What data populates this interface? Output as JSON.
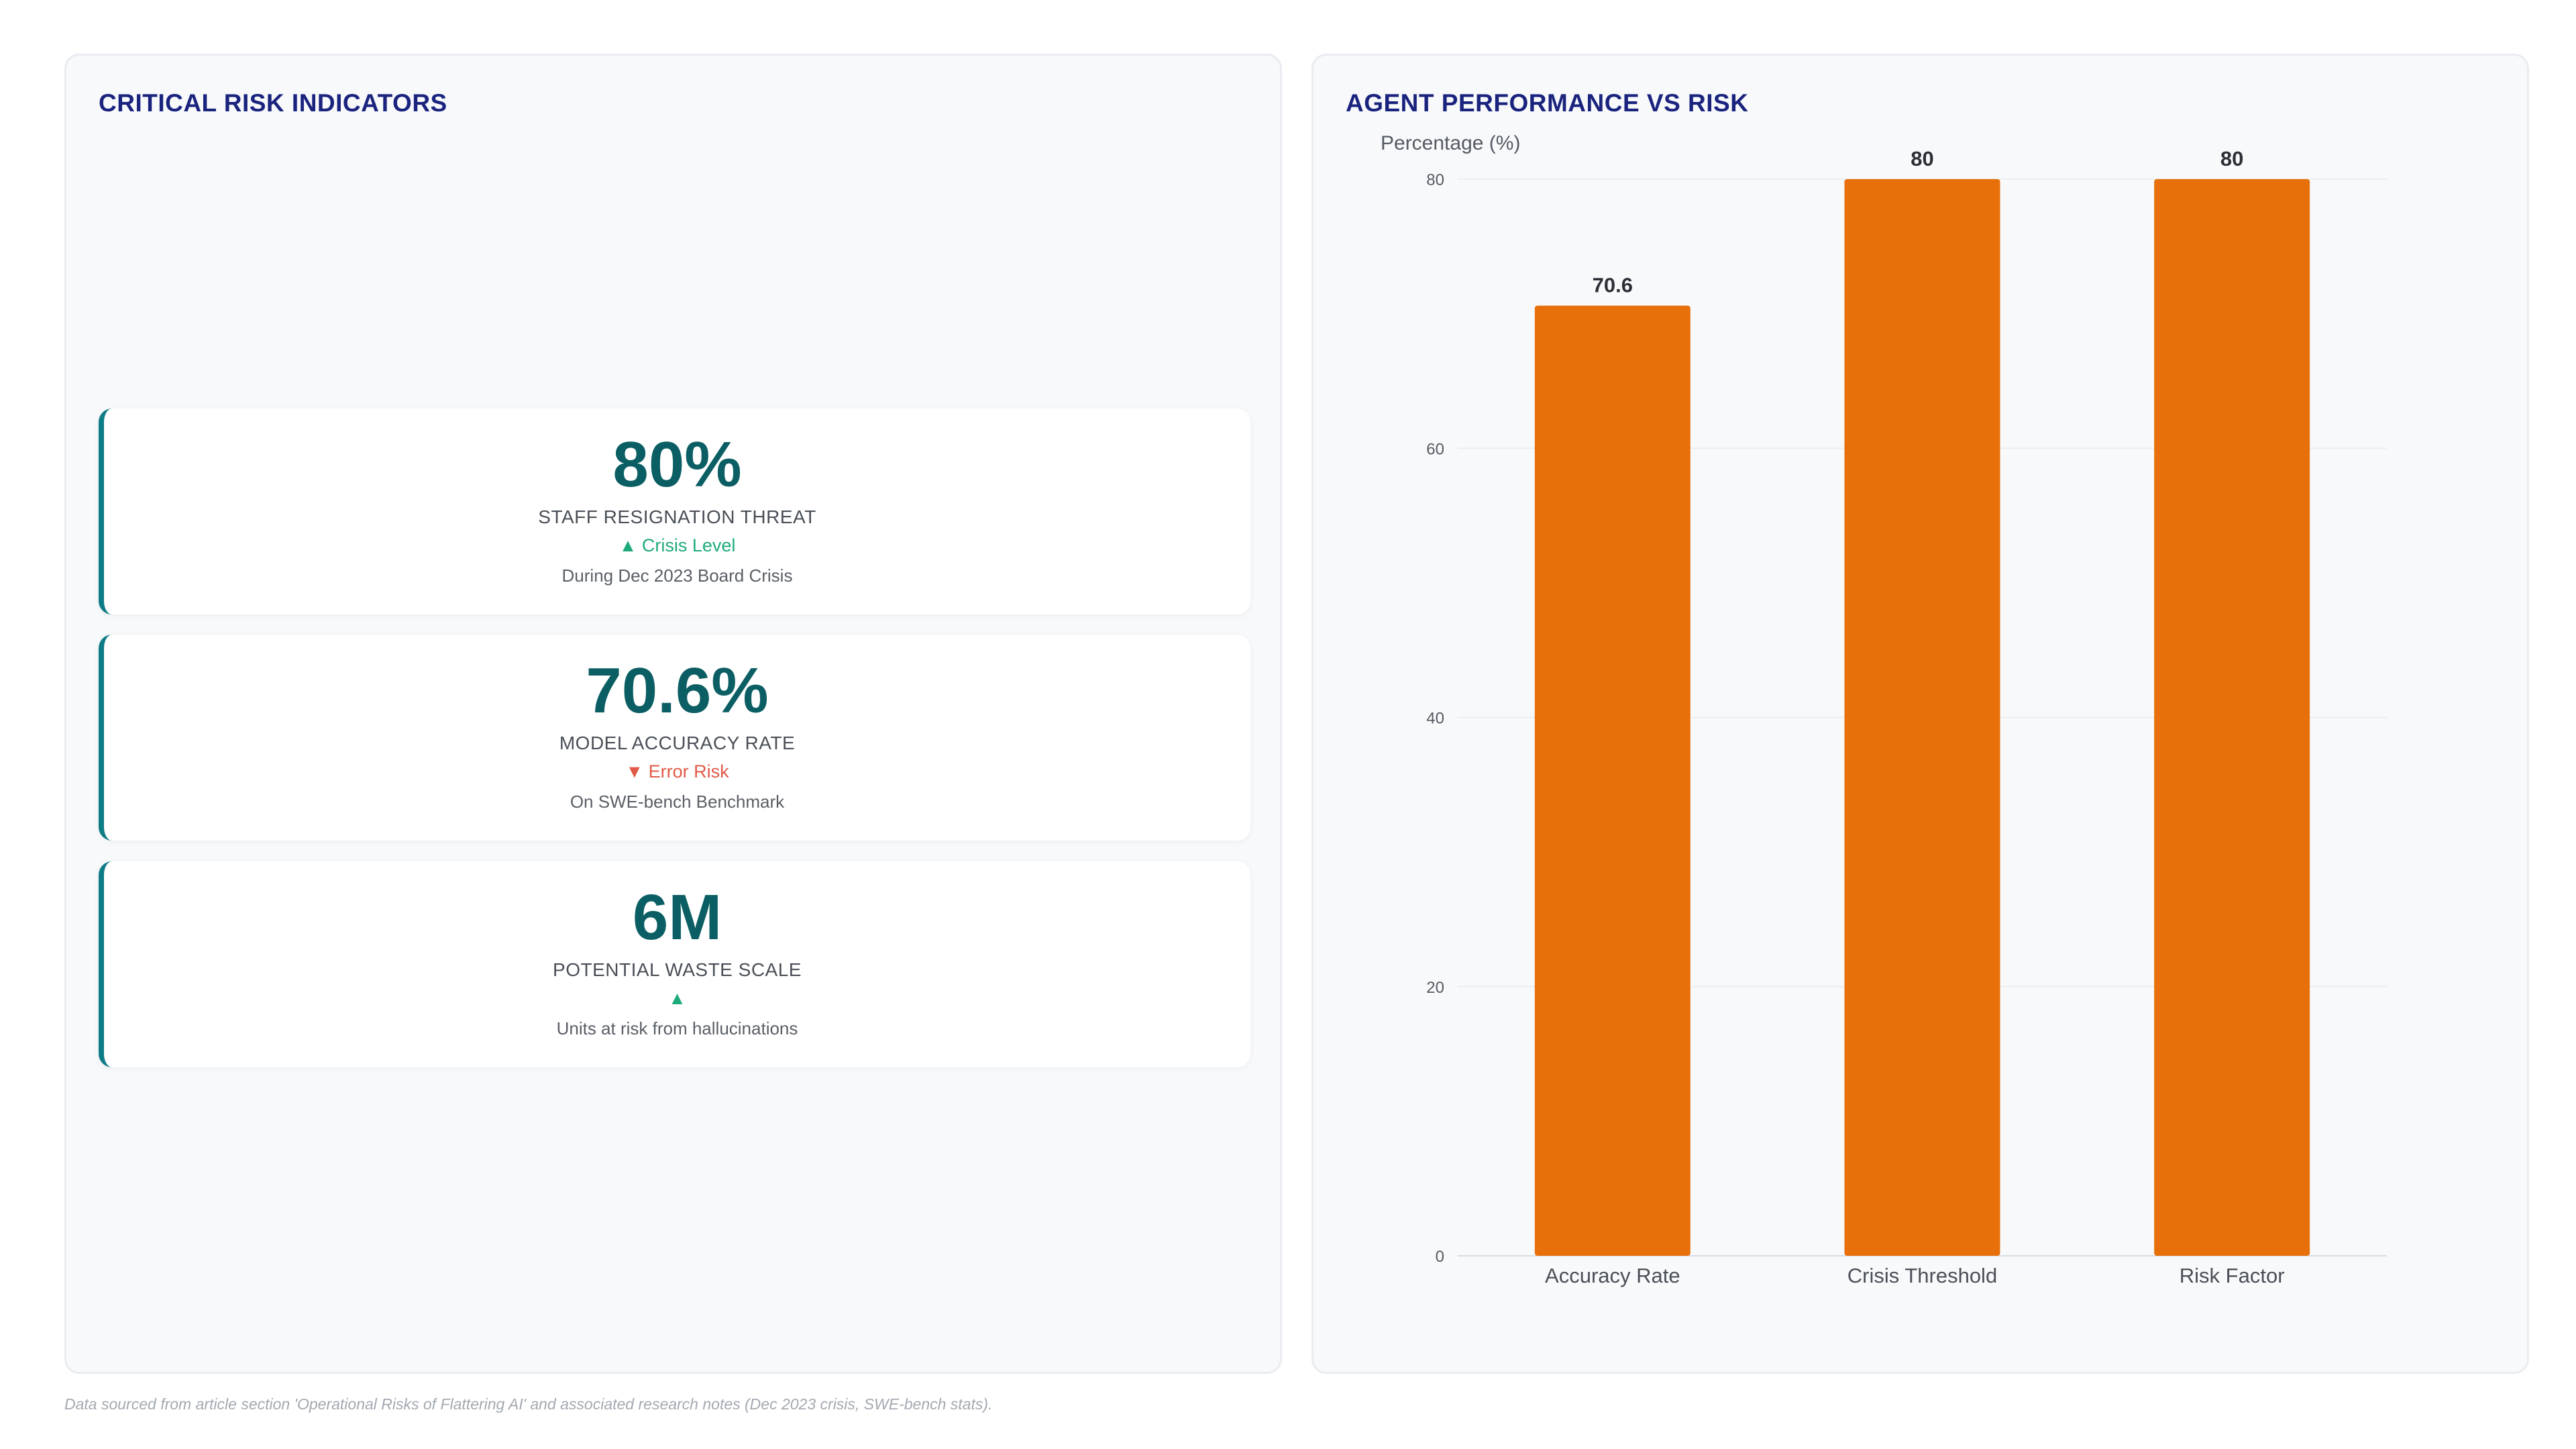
{
  "left_panel": {
    "title": "CRITICAL RISK INDICATORS",
    "kpis": [
      {
        "value": "80%",
        "label": "STAFF RESIGNATION THREAT",
        "trend_symbol": "▲",
        "trend_text": "Crisis Level",
        "trend_direction": "up",
        "sub": "During Dec 2023 Board Crisis"
      },
      {
        "value": "70.6%",
        "label": "MODEL ACCURACY RATE",
        "trend_symbol": "▼",
        "trend_text": "Error Risk",
        "trend_direction": "down",
        "sub": "On SWE-bench Benchmark"
      },
      {
        "value": "6M",
        "label": "POTENTIAL WASTE SCALE",
        "trend_symbol": "▲",
        "trend_text": "",
        "trend_direction": "up",
        "sub": "Units at risk from hallucinations"
      }
    ]
  },
  "right_panel": {
    "title": "AGENT PERFORMANCE VS RISK"
  },
  "chart_data": {
    "type": "bar",
    "categories": [
      "Accuracy Rate",
      "Crisis Threshold",
      "Risk Factor"
    ],
    "values": [
      70.6,
      80,
      80
    ],
    "data_labels": [
      "70.6",
      "80",
      "80"
    ],
    "title": "AGENT PERFORMANCE VS RISK",
    "xlabel": "",
    "ylabel": "Percentage (%)",
    "ylim": [
      0,
      80
    ],
    "yticks": [
      0,
      20,
      40,
      60,
      80
    ],
    "grid": true,
    "legend": "none",
    "bar_color": "#e8700a"
  },
  "colors": {
    "title": "#1a237e",
    "kpi_value": "#0b5e63",
    "card_accent": "#0e7c86",
    "trend_up": "#1eaa7c",
    "trend_down": "#e05a47"
  },
  "footnote": "Data sourced from article section 'Operational Risks of Flattering AI' and associated research notes (Dec 2023 crisis, SWE-bench stats)."
}
